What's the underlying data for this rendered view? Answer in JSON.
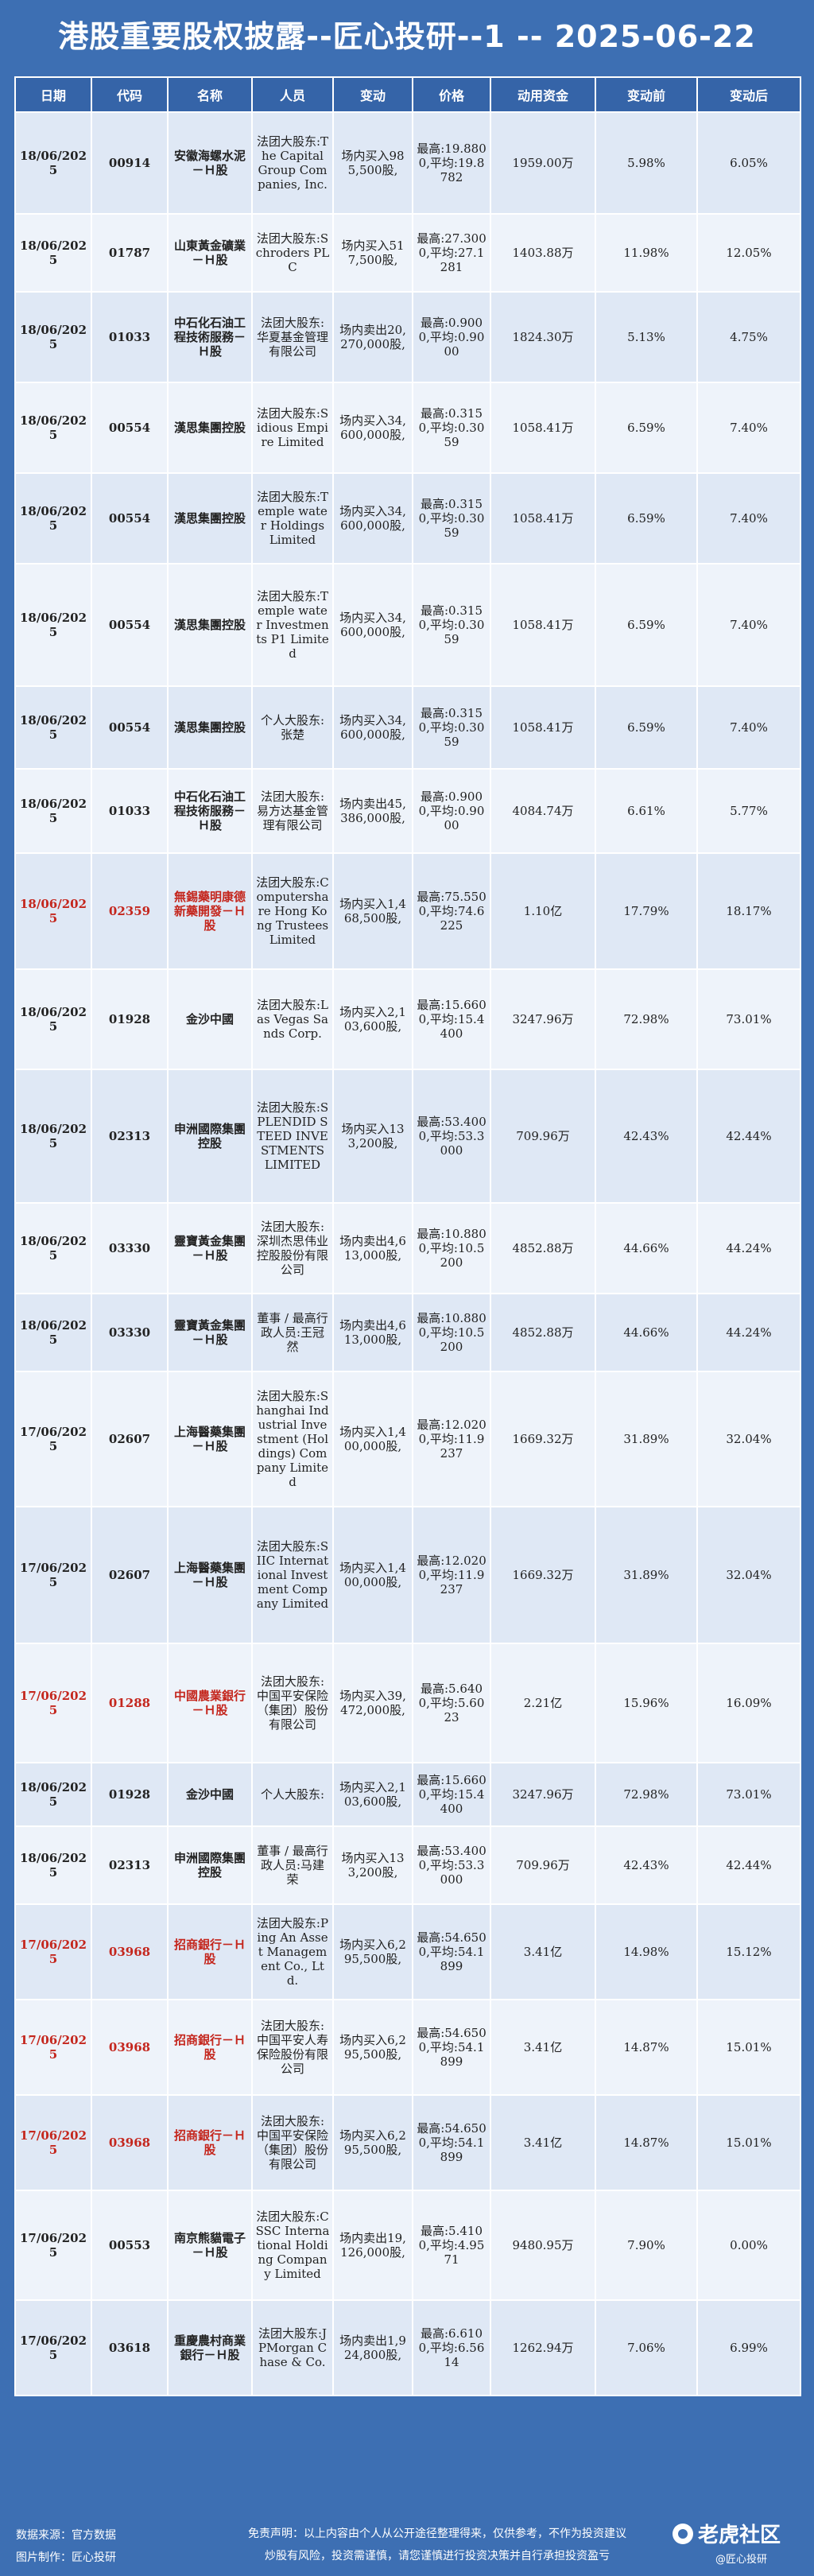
{
  "title": "港股重要股权披露--匠心投研--1 -- 2025-06-22",
  "columns": [
    "日期",
    "代码",
    "名称",
    "人员",
    "变动",
    "价格",
    "动用资金",
    "变动前",
    "变动后"
  ],
  "rows": [
    {
      "date": "18/06/2025",
      "code": "00914",
      "name": "安徽海螺水泥－Ｈ股",
      "person": "法团大股东:The Capital Group Companies, Inc.",
      "change": "场内买入985,500股,",
      "price": "最高:19.8800,平均:19.8782",
      "amount": "1959.00万",
      "before": "5.98%",
      "after": "6.05%",
      "hl": false
    },
    {
      "date": "18/06/2025",
      "code": "01787",
      "name": "山東黃金礦業－Ｈ股",
      "person": "法团大股东:Schroders PLC",
      "change": "场内买入517,500股,",
      "price": "最高:27.3000,平均:27.1281",
      "amount": "1403.88万",
      "before": "11.98%",
      "after": "12.05%",
      "hl": false
    },
    {
      "date": "18/06/2025",
      "code": "01033",
      "name": "中石化石油工程技術服務－Ｈ股",
      "person": "法团大股东:华夏基金管理有限公司",
      "change": "场内卖出20,270,000股,",
      "price": "最高:0.9000,平均:0.9000",
      "amount": "1824.30万",
      "before": "5.13%",
      "after": "4.75%",
      "hl": false
    },
    {
      "date": "18/06/2025",
      "code": "00554",
      "name": "漢思集團控股",
      "person": "法团大股东:Sidious Empire Limited",
      "change": "场内买入34,600,000股,",
      "price": "最高:0.3150,平均:0.3059",
      "amount": "1058.41万",
      "before": "6.59%",
      "after": "7.40%",
      "hl": false
    },
    {
      "date": "18/06/2025",
      "code": "00554",
      "name": "漢思集團控股",
      "person": "法团大股东:Temple water Holdings Limited",
      "change": "场内买入34,600,000股,",
      "price": "最高:0.3150,平均:0.3059",
      "amount": "1058.41万",
      "before": "6.59%",
      "after": "7.40%",
      "hl": false
    },
    {
      "date": "18/06/2025",
      "code": "00554",
      "name": "漢思集團控股",
      "person": "法团大股东:Temple water Investments P1 Limited",
      "change": "场内买入34,600,000股,",
      "price": "最高:0.3150,平均:0.3059",
      "amount": "1058.41万",
      "before": "6.59%",
      "after": "7.40%",
      "hl": false
    },
    {
      "date": "18/06/2025",
      "code": "00554",
      "name": "漢思集團控股",
      "person": "个人大股东:张楚",
      "change": "场内买入34,600,000股,",
      "price": "最高:0.3150,平均:0.3059",
      "amount": "1058.41万",
      "before": "6.59%",
      "after": "7.40%",
      "hl": false
    },
    {
      "date": "18/06/2025",
      "code": "01033",
      "name": "中石化石油工程技術服務－Ｈ股",
      "person": "法团大股东:易方达基金管理有限公司",
      "change": "场内卖出45,386,000股,",
      "price": "最高:0.9000,平均:0.9000",
      "amount": "4084.74万",
      "before": "6.61%",
      "after": "5.77%",
      "hl": false
    },
    {
      "date": "18/06/2025",
      "code": "02359",
      "name": "無錫藥明康德新藥開發－Ｈ股",
      "person": "法团大股东:Computershare Hong Kong Trustees Limited",
      "change": "场内买入1,468,500股,",
      "price": "最高:75.5500,平均:74.6225",
      "amount": "1.10亿",
      "before": "17.79%",
      "after": "18.17%",
      "hl": true
    },
    {
      "date": "18/06/2025",
      "code": "01928",
      "name": "金沙中國",
      "person": "法团大股东:Las Vegas Sands Corp.",
      "change": "场内买入2,103,600股,",
      "price": "最高:15.6600,平均:15.4400",
      "amount": "3247.96万",
      "before": "72.98%",
      "after": "73.01%",
      "hl": false
    },
    {
      "date": "18/06/2025",
      "code": "02313",
      "name": "申洲國際集團控股",
      "person": "法团大股东:SPLENDID STEED INVESTMENTS LIMITED",
      "change": "场内买入133,200股,",
      "price": "最高:53.4000,平均:53.3000",
      "amount": "709.96万",
      "before": "42.43%",
      "after": "42.44%",
      "hl": false
    },
    {
      "date": "18/06/2025",
      "code": "03330",
      "name": "靈寶黃金集團－Ｈ股",
      "person": "法团大股东:深圳杰思伟业控股股份有限公司",
      "change": "场内卖出4,613,000股,",
      "price": "最高:10.8800,平均:10.5200",
      "amount": "4852.88万",
      "before": "44.66%",
      "after": "44.24%",
      "hl": false
    },
    {
      "date": "18/06/2025",
      "code": "03330",
      "name": "靈寶黃金集團－Ｈ股",
      "person": "董事 / 最高行政人员:王冠然",
      "change": "场内卖出4,613,000股,",
      "price": "最高:10.8800,平均:10.5200",
      "amount": "4852.88万",
      "before": "44.66%",
      "after": "44.24%",
      "hl": false
    },
    {
      "date": "17/06/2025",
      "code": "02607",
      "name": "上海醫藥集團－Ｈ股",
      "person": "法团大股东:Shanghai Industrial Investment (Holdings) Company Limited",
      "change": "场内买入1,400,000股,",
      "price": "最高:12.0200,平均:11.9237",
      "amount": "1669.32万",
      "before": "31.89%",
      "after": "32.04%",
      "hl": false
    },
    {
      "date": "17/06/2025",
      "code": "02607",
      "name": "上海醫藥集團－Ｈ股",
      "person": "法团大股东:SIIC International Investment Company Limited",
      "change": "场内买入1,400,000股,",
      "price": "最高:12.0200,平均:11.9237",
      "amount": "1669.32万",
      "before": "31.89%",
      "after": "32.04%",
      "hl": false
    },
    {
      "date": "17/06/2025",
      "code": "01288",
      "name": "中國農業銀行－Ｈ股",
      "person": "法团大股东:中国平安保险（集团）股份有限公司",
      "change": "场内买入39,472,000股,",
      "price": "最高:5.6400,平均:5.6023",
      "amount": "2.21亿",
      "before": "15.96%",
      "after": "16.09%",
      "hl": true
    },
    {
      "date": "18/06/2025",
      "code": "01928",
      "name": "金沙中國",
      "person": "个人大股东:",
      "change": "场内买入2,103,600股,",
      "price": "最高:15.6600,平均:15.4400",
      "amount": "3247.96万",
      "before": "72.98%",
      "after": "73.01%",
      "hl": false
    },
    {
      "date": "18/06/2025",
      "code": "02313",
      "name": "申洲國際集團控股",
      "person": "董事 / 最高行政人员:马建荣",
      "change": "场内买入133,200股,",
      "price": "最高:53.4000,平均:53.3000",
      "amount": "709.96万",
      "before": "42.43%",
      "after": "42.44%",
      "hl": false
    },
    {
      "date": "17/06/2025",
      "code": "03968",
      "name": "招商銀行－Ｈ股",
      "person": "法团大股东:Ping An Asset Management Co., Ltd.",
      "change": "场内买入6,295,500股,",
      "price": "最高:54.6500,平均:54.1899",
      "amount": "3.41亿",
      "before": "14.98%",
      "after": "15.12%",
      "hl": true
    },
    {
      "date": "17/06/2025",
      "code": "03968",
      "name": "招商銀行－Ｈ股",
      "person": "法团大股东:中国平安人寿保险股份有限公司",
      "change": "场内买入6,295,500股,",
      "price": "最高:54.6500,平均:54.1899",
      "amount": "3.41亿",
      "before": "14.87%",
      "after": "15.01%",
      "hl": true
    },
    {
      "date": "17/06/2025",
      "code": "03968",
      "name": "招商銀行－Ｈ股",
      "person": "法团大股东:中国平安保险（集团）股份有限公司",
      "change": "场内买入6,295,500股,",
      "price": "最高:54.6500,平均:54.1899",
      "amount": "3.41亿",
      "before": "14.87%",
      "after": "15.01%",
      "hl": true
    },
    {
      "date": "17/06/2025",
      "code": "00553",
      "name": "南京熊貓電子－Ｈ股",
      "person": "法团大股东:CSSC International Holding Company Limited",
      "change": "场内卖出19,126,000股,",
      "price": "最高:5.4100,平均:4.9571",
      "amount": "9480.95万",
      "before": "7.90%",
      "after": "0.00%",
      "hl": false
    },
    {
      "date": "17/06/2025",
      "code": "03618",
      "name": "重慶農村商業銀行－Ｈ股",
      "person": "法团大股东:JPMorgan Chase & Co.",
      "change": "场内卖出1,924,800股,",
      "price": "最高:6.6100,平均:6.5614",
      "amount": "1262.94万",
      "before": "7.06%",
      "after": "6.99%",
      "hl": false
    }
  ],
  "footer": {
    "source": "数据来源：官方数据",
    "image_author": "图片制作：匠心投研",
    "disclaimer_1": "免责声明：以上内容由个人从公开途径整理得来，仅供参考，不作为投资建议",
    "disclaimer_2": "炒股有风险，投资需谨慎，请您谨慎进行投资决策并自行承担投资盈亏",
    "brand": "老虎社区",
    "handle": "@匠心投研"
  }
}
